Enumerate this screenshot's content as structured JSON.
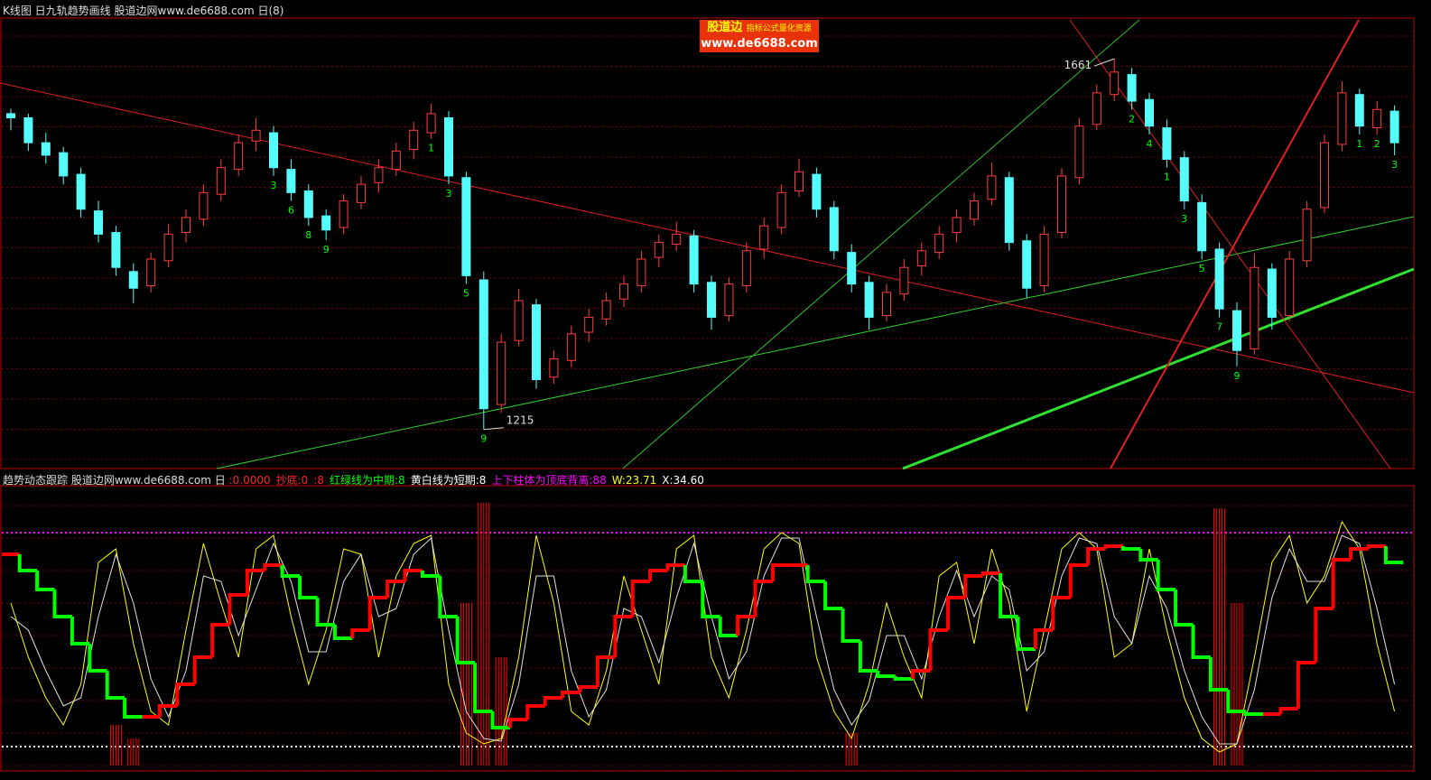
{
  "header": {
    "title": "K线图 日九轨趋势画线 股道边网www.de6688.com 日(8)"
  },
  "watermark": {
    "brand": "股道边",
    "tagline": "指标公式量化资源",
    "url": "www.de6688.com"
  },
  "chart_data": [
    {
      "type": "candlestick",
      "up_color": "#ff3c3c",
      "down_color": "#54fcfc",
      "ylim": [
        1168,
        1710
      ],
      "ohlc": [
        [
          1595,
          1601,
          1575,
          1590
        ],
        [
          1590,
          1595,
          1550,
          1560
        ],
        [
          1560,
          1572,
          1535,
          1545
        ],
        [
          1548,
          1555,
          1510,
          1520
        ],
        [
          1522,
          1530,
          1470,
          1480
        ],
        [
          1478,
          1490,
          1440,
          1450
        ],
        [
          1452,
          1460,
          1400,
          1410
        ],
        [
          1405,
          1415,
          1367,
          1385
        ],
        [
          1388,
          1428,
          1380,
          1420
        ],
        [
          1418,
          1462,
          1410,
          1450
        ],
        [
          1452,
          1480,
          1440,
          1470
        ],
        [
          1468,
          1510,
          1460,
          1500
        ],
        [
          1498,
          1540,
          1490,
          1530
        ],
        [
          1528,
          1570,
          1520,
          1560
        ],
        [
          1562,
          1590,
          1550,
          1575
        ],
        [
          1572,
          1580,
          1520,
          1530
        ],
        [
          1528,
          1540,
          1490,
          1500
        ],
        [
          1502,
          1510,
          1460,
          1470
        ],
        [
          1472,
          1480,
          1443,
          1455
        ],
        [
          1458,
          1498,
          1450,
          1490
        ],
        [
          1488,
          1520,
          1480,
          1510
        ],
        [
          1512,
          1540,
          1500,
          1530
        ],
        [
          1528,
          1560,
          1520,
          1550
        ],
        [
          1552,
          1585,
          1540,
          1575
        ],
        [
          1572,
          1607,
          1565,
          1595
        ],
        [
          1590,
          1598,
          1510,
          1520
        ],
        [
          1518,
          1525,
          1390,
          1400
        ],
        [
          1395,
          1405,
          1215,
          1240
        ],
        [
          1245,
          1330,
          1235,
          1320
        ],
        [
          1322,
          1384,
          1315,
          1370
        ],
        [
          1365,
          1372,
          1264,
          1275
        ],
        [
          1278,
          1310,
          1270,
          1300
        ],
        [
          1298,
          1340,
          1290,
          1330
        ],
        [
          1332,
          1360,
          1320,
          1350
        ],
        [
          1348,
          1380,
          1340,
          1370
        ],
        [
          1372,
          1400,
          1362,
          1390
        ],
        [
          1388,
          1430,
          1380,
          1420
        ],
        [
          1422,
          1450,
          1410,
          1440
        ],
        [
          1438,
          1465,
          1430,
          1450
        ],
        [
          1448,
          1455,
          1380,
          1390
        ],
        [
          1392,
          1400,
          1335,
          1350
        ],
        [
          1352,
          1398,
          1345,
          1390
        ],
        [
          1388,
          1440,
          1380,
          1430
        ],
        [
          1432,
          1470,
          1420,
          1460
        ],
        [
          1458,
          1510,
          1450,
          1500
        ],
        [
          1502,
          1541,
          1495,
          1525
        ],
        [
          1522,
          1530,
          1470,
          1480
        ],
        [
          1482,
          1490,
          1420,
          1430
        ],
        [
          1428,
          1438,
          1380,
          1390
        ],
        [
          1392,
          1400,
          1335,
          1350
        ],
        [
          1352,
          1390,
          1345,
          1380
        ],
        [
          1378,
          1420,
          1370,
          1410
        ],
        [
          1412,
          1440,
          1400,
          1430
        ],
        [
          1428,
          1460,
          1420,
          1450
        ],
        [
          1452,
          1480,
          1440,
          1470
        ],
        [
          1468,
          1500,
          1460,
          1490
        ],
        [
          1492,
          1536,
          1485,
          1520
        ],
        [
          1518,
          1525,
          1430,
          1440
        ],
        [
          1442,
          1450,
          1373,
          1385
        ],
        [
          1388,
          1460,
          1380,
          1450
        ],
        [
          1452,
          1530,
          1445,
          1520
        ],
        [
          1518,
          1590,
          1510,
          1580
        ],
        [
          1582,
          1630,
          1575,
          1620
        ],
        [
          1618,
          1661,
          1610,
          1645
        ],
        [
          1642,
          1650,
          1600,
          1610
        ],
        [
          1612,
          1620,
          1570,
          1580
        ],
        [
          1578,
          1588,
          1530,
          1540
        ],
        [
          1542,
          1550,
          1480,
          1490
        ],
        [
          1488,
          1498,
          1420,
          1430
        ],
        [
          1432,
          1440,
          1350,
          1360
        ],
        [
          1358,
          1368,
          1291,
          1310
        ],
        [
          1312,
          1427,
          1305,
          1410
        ],
        [
          1408,
          1415,
          1335,
          1350
        ],
        [
          1352,
          1430,
          1345,
          1420
        ],
        [
          1418,
          1490,
          1410,
          1480
        ],
        [
          1482,
          1570,
          1475,
          1560
        ],
        [
          1558,
          1634,
          1550,
          1620
        ],
        [
          1618,
          1625,
          1570,
          1580
        ],
        [
          1578,
          1610,
          1570,
          1600
        ],
        [
          1598,
          1605,
          1545,
          1560
        ]
      ],
      "annotations": [
        {
          "value": 1661,
          "at": 63
        },
        {
          "value": 1215,
          "at": 27
        }
      ],
      "td_color": "#00ff00",
      "td_counts": [
        {
          "at": 15,
          "value": 3
        },
        {
          "at": 16,
          "value": 6
        },
        {
          "at": 17,
          "value": 8
        },
        {
          "at": 18,
          "value": 9
        },
        {
          "at": 24,
          "value": 1
        },
        {
          "at": 25,
          "value": 3
        },
        {
          "at": 26,
          "value": 5
        },
        {
          "at": 27,
          "value": 9
        },
        {
          "at": 64,
          "value": 2
        },
        {
          "at": 65,
          "value": 4
        },
        {
          "at": 66,
          "value": 1
        },
        {
          "at": 67,
          "value": 3
        },
        {
          "at": 68,
          "value": 5
        },
        {
          "at": 69,
          "value": 7
        },
        {
          "at": 70,
          "value": 9
        },
        {
          "at": 77,
          "value": 1
        },
        {
          "at": 78,
          "value": 2
        },
        {
          "at": 79,
          "value": 3
        }
      ]
    },
    {
      "type": "oscillator",
      "title": "趋势动态跟踪 股道边网www.de6688.com 日",
      "items": [
        {
          "text": ":0.0000",
          "color": "#ff2020"
        },
        {
          "text": "抄底:0",
          "color": "#ff2020"
        },
        {
          "text": ":8",
          "color": "#ff2020"
        },
        {
          "text": "红绿线为中期:8",
          "color": "#00ff00"
        },
        {
          "text": "黄白线为短期:8",
          "color": "#ffffff"
        },
        {
          "text": "上下柱体为顶底背离:88",
          "color": "#ff00ff"
        },
        {
          "text": "W:23.71",
          "color": "#ffff00"
        },
        {
          "text": "X:34.60",
          "color": "#ffffff"
        }
      ],
      "ylim": [
        0,
        100
      ],
      "levels": [
        {
          "value": 86,
          "color": "#ff00ff"
        },
        {
          "value": 7,
          "color": "#ffffff"
        }
      ],
      "mid": {
        "up_color": "#ff0000",
        "down_color": "#00ff00",
        "values": [
          78,
          72,
          65,
          55,
          45,
          35,
          25,
          18,
          18,
          22,
          30,
          40,
          52,
          63,
          72,
          74,
          70,
          62,
          52,
          47,
          50,
          62,
          68,
          72,
          70,
          55,
          38,
          20,
          14,
          17,
          22,
          25,
          27,
          29,
          40,
          55,
          68,
          72,
          74,
          68,
          55,
          48,
          55,
          68,
          74,
          74,
          68,
          58,
          46,
          35,
          33,
          32,
          35,
          50,
          62,
          70,
          71,
          55,
          43,
          50,
          62,
          74,
          80,
          81,
          80,
          76,
          65,
          52,
          40,
          28,
          20,
          19,
          19,
          21,
          38,
          58,
          76,
          80,
          81,
          75
        ]
      },
      "series": [
        {
          "color": "#ffff00",
          "values": [
            60,
            40,
            25,
            15,
            30,
            75,
            80,
            45,
            20,
            15,
            50,
            82,
            60,
            40,
            80,
            85,
            55,
            30,
            50,
            80,
            78,
            40,
            70,
            82,
            85,
            30,
            12,
            8,
            10,
            40,
            85,
            60,
            20,
            15,
            35,
            70,
            50,
            30,
            80,
            85,
            40,
            25,
            50,
            80,
            86,
            82,
            40,
            20,
            10,
            30,
            60,
            40,
            25,
            70,
            75,
            45,
            80,
            60,
            20,
            50,
            80,
            86,
            80,
            40,
            45,
            80,
            50,
            25,
            10,
            5,
            8,
            40,
            75,
            85,
            60,
            70,
            90,
            80,
            45,
            20
          ]
        },
        {
          "color": "#e0e0e0",
          "values": [
            55,
            50,
            35,
            22,
            25,
            55,
            78,
            60,
            32,
            18,
            35,
            70,
            68,
            48,
            65,
            82,
            68,
            42,
            42,
            68,
            78,
            55,
            58,
            78,
            84,
            50,
            20,
            10,
            9,
            30,
            70,
            70,
            35,
            18,
            28,
            58,
            55,
            38,
            62,
            82,
            55,
            32,
            42,
            70,
            84,
            84,
            55,
            28,
            15,
            24,
            48,
            48,
            32,
            55,
            72,
            55,
            70,
            65,
            35,
            42,
            70,
            84,
            82,
            55,
            45,
            70,
            58,
            35,
            18,
            8,
            8,
            28,
            62,
            80,
            68,
            68,
            85,
            82,
            58,
            30
          ]
        }
      ],
      "bar_color": "#ff0000",
      "bars": [
        {
          "at": 6,
          "value": 15
        },
        {
          "at": 7,
          "value": 10
        },
        {
          "at": 26,
          "value": 60
        },
        {
          "at": 27,
          "value": 97
        },
        {
          "at": 28,
          "value": 40
        },
        {
          "at": 48,
          "value": 12
        },
        {
          "at": 69,
          "value": 95
        },
        {
          "at": 70,
          "value": 60
        }
      ]
    }
  ]
}
